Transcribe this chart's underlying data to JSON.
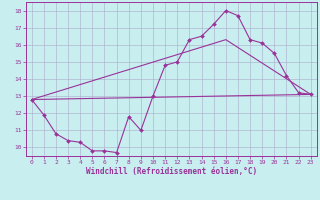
{
  "xlabel": "Windchill (Refroidissement éolien,°C)",
  "xlim": [
    -0.5,
    23.5
  ],
  "ylim": [
    9.5,
    18.5
  ],
  "xticks": [
    0,
    1,
    2,
    3,
    4,
    5,
    6,
    7,
    8,
    9,
    10,
    11,
    12,
    13,
    14,
    15,
    16,
    17,
    18,
    19,
    20,
    21,
    22,
    23
  ],
  "yticks": [
    10,
    11,
    12,
    13,
    14,
    15,
    16,
    17,
    18
  ],
  "bg_color": "#c8eef0",
  "grid_color": "#aaaacc",
  "line_color": "#993399",
  "line1_x": [
    0,
    1,
    2,
    3,
    4,
    5,
    6,
    7,
    8,
    9,
    10,
    11,
    12,
    13,
    14,
    15,
    16,
    17,
    18,
    19,
    20,
    21,
    22,
    23
  ],
  "line1_y": [
    12.8,
    11.9,
    10.8,
    10.4,
    10.3,
    9.8,
    9.8,
    9.7,
    11.8,
    11.0,
    13.0,
    14.8,
    15.0,
    16.3,
    16.5,
    17.2,
    18.0,
    17.7,
    16.3,
    16.1,
    15.5,
    14.2,
    13.2,
    13.1
  ],
  "line2_x": [
    0,
    23
  ],
  "line2_y": [
    12.8,
    13.1
  ],
  "line3_x": [
    0,
    16,
    23
  ],
  "line3_y": [
    12.8,
    16.3,
    13.1
  ]
}
